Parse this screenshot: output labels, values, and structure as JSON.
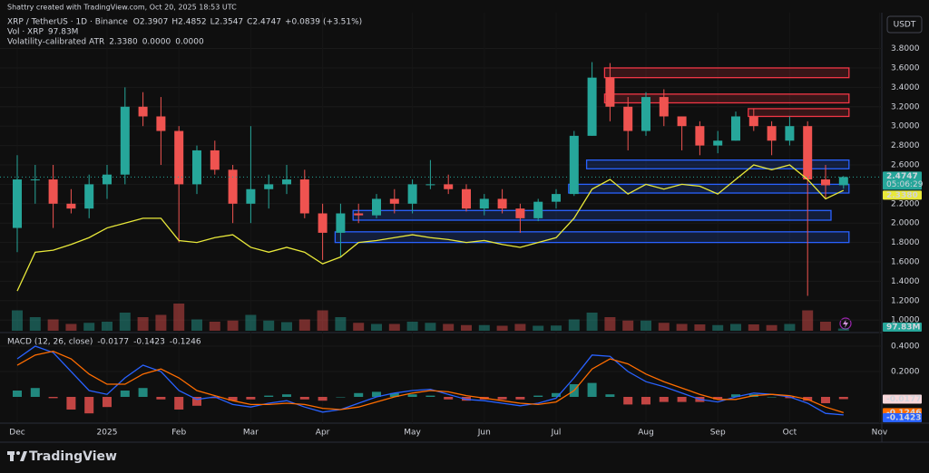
{
  "header": {
    "attribution": "Shattry created with TradingView.com, Oct 20, 2025 18:53 UTC",
    "currency": "USDT",
    "brand": "TradingView"
  },
  "chart_data": [
    {
      "type": "candlestick",
      "title": "XRP / TetherUS · 1D · Binance",
      "legend_values": [
        {
          "key": "O",
          "value": 2.3907
        },
        {
          "key": "H",
          "value": 2.4852
        },
        {
          "key": "L",
          "value": 2.3547
        },
        {
          "key": "C",
          "value": 2.4747
        }
      ],
      "change": {
        "value": 0.0839,
        "label": "+0.0839"
      },
      "change_pct": {
        "value": 3.51,
        "label": "(+3.51%)"
      },
      "countdown": "05:06:29",
      "categories": [
        "Dec",
        null,
        null,
        null,
        null,
        "2025",
        null,
        null,
        null,
        "Feb",
        null,
        null,
        null,
        "Mar",
        null,
        null,
        null,
        "Apr",
        null,
        null,
        null,
        null,
        "May",
        null,
        null,
        null,
        "Jun",
        null,
        null,
        null,
        "Jul",
        null,
        null,
        null,
        null,
        "Aug",
        null,
        null,
        null,
        "Sep",
        null,
        null,
        null,
        "Oct",
        null,
        null,
        null,
        null,
        "Nov"
      ],
      "open": [
        1.95,
        2.45,
        2.45,
        2.2,
        2.15,
        2.4,
        2.5,
        3.2,
        3.1,
        2.95,
        2.4,
        2.75,
        2.55,
        2.2,
        2.35,
        2.4,
        2.45,
        2.1,
        1.9,
        2.1,
        2.08,
        2.25,
        2.2,
        2.4,
        2.4,
        2.35,
        2.15,
        2.25,
        2.15,
        2.05,
        2.22,
        2.3,
        2.9,
        3.5,
        3.2,
        2.95,
        3.3,
        3.1,
        3.0,
        2.8,
        2.85,
        3.1,
        3.0,
        2.85,
        3.0,
        2.45,
        2.3907,
        null,
        null
      ],
      "high": [
        2.7,
        2.6,
        2.6,
        2.35,
        2.5,
        2.6,
        3.4,
        3.35,
        3.3,
        3.0,
        2.8,
        2.85,
        2.6,
        3.0,
        2.5,
        2.6,
        2.55,
        2.2,
        2.2,
        2.2,
        2.3,
        2.35,
        2.45,
        2.65,
        2.5,
        2.4,
        2.3,
        2.35,
        2.2,
        2.25,
        2.35,
        2.95,
        3.66,
        3.65,
        3.3,
        3.35,
        3.38,
        3.1,
        3.05,
        2.95,
        3.15,
        3.18,
        3.05,
        3.1,
        3.05,
        2.6,
        2.4852,
        null,
        null
      ],
      "low": [
        1.7,
        2.2,
        1.95,
        2.1,
        2.05,
        2.25,
        2.4,
        3.0,
        2.6,
        1.8,
        2.3,
        2.5,
        2.0,
        2.0,
        2.15,
        2.3,
        2.05,
        1.62,
        1.65,
        2.0,
        2.05,
        2.1,
        2.1,
        2.35,
        2.3,
        2.12,
        2.08,
        2.1,
        1.9,
        2.02,
        2.15,
        2.28,
        2.9,
        3.05,
        2.75,
        2.9,
        3.0,
        2.75,
        2.7,
        2.72,
        2.85,
        2.95,
        2.7,
        2.8,
        1.25,
        2.25,
        2.3547,
        null,
        null
      ],
      "close": [
        2.45,
        2.45,
        2.2,
        2.15,
        2.4,
        2.5,
        3.2,
        3.1,
        2.95,
        2.4,
        2.75,
        2.55,
        2.2,
        2.35,
        2.4,
        2.45,
        2.1,
        1.9,
        2.1,
        2.08,
        2.25,
        2.2,
        2.4,
        2.4,
        2.35,
        2.15,
        2.25,
        2.15,
        2.05,
        2.22,
        2.3,
        2.9,
        3.5,
        3.2,
        2.95,
        3.3,
        3.1,
        3.0,
        2.8,
        2.85,
        3.1,
        3.0,
        2.85,
        3.0,
        2.45,
        2.39,
        2.4747,
        null,
        null
      ],
      "up_color": "#26a69a",
      "down_color": "#ef5350",
      "ylim": [
        0.89,
        3.88
      ],
      "yticks": [
        {
          "value": 3.8,
          "label": "3.8000"
        },
        {
          "value": 3.6,
          "label": "3.6000"
        },
        {
          "value": 3.4,
          "label": "3.4000"
        },
        {
          "value": 3.2,
          "label": "3.2000"
        },
        {
          "value": 3.0,
          "label": "3.0000"
        },
        {
          "value": 2.8,
          "label": "2.8000"
        },
        {
          "value": 2.6,
          "label": "2.6000"
        },
        {
          "value": 2.4,
          "label": "2.4000"
        },
        {
          "value": 2.2,
          "label": "2.2000"
        },
        {
          "value": 2.0,
          "label": "2.0000"
        },
        {
          "value": 1.8,
          "label": "1.8000"
        },
        {
          "value": 1.6,
          "label": "1.6000"
        },
        {
          "value": 1.4,
          "label": "1.4000"
        },
        {
          "value": 1.2,
          "label": "1.2000"
        },
        {
          "value": 1.0,
          "label": "1.0000"
        }
      ],
      "grid": true,
      "volume": {
        "name": "Vol · XRP",
        "lim": [
          0,
          1600
        ],
        "last_label": {
          "value": 97.83,
          "label": "97.83M"
        },
        "values": [
          900,
          600,
          500,
          300,
          350,
          400,
          800,
          600,
          700,
          1200,
          500,
          400,
          450,
          700,
          450,
          380,
          500,
          900,
          600,
          350,
          300,
          300,
          400,
          350,
          300,
          250,
          250,
          220,
          300,
          220,
          230,
          500,
          800,
          600,
          450,
          450,
          350,
          300,
          280,
          250,
          300,
          280,
          250,
          300,
          900,
          400,
          97.83,
          null,
          null
        ]
      },
      "atr": {
        "name": "Volatility-calibrated ATR",
        "color": "#e8e83a",
        "legend_values": [
          {
            "value": 2.338,
            "label": "2.3380"
          },
          {
            "value": 0,
            "label": "0.0000"
          },
          {
            "value": 0,
            "label": "0.0000"
          }
        ],
        "values": [
          1.3,
          1.7,
          1.72,
          1.78,
          1.85,
          1.95,
          2.0,
          2.05,
          2.05,
          1.82,
          1.8,
          1.85,
          1.88,
          1.75,
          1.7,
          1.75,
          1.7,
          1.58,
          1.65,
          1.8,
          1.82,
          1.85,
          1.88,
          1.85,
          1.83,
          1.8,
          1.82,
          1.78,
          1.75,
          1.8,
          1.85,
          2.05,
          2.35,
          2.45,
          2.3,
          2.4,
          2.35,
          2.4,
          2.38,
          2.3,
          2.45,
          2.6,
          2.55,
          2.6,
          2.45,
          2.25,
          2.338,
          null,
          null
        ]
      },
      "zones": [
        {
          "price": [
            3.5,
            3.6
          ],
          "start": 33,
          "end": 46,
          "color": "#f23645"
        },
        {
          "price": [
            3.24,
            3.33
          ],
          "start": 33,
          "end": 46,
          "color": "#f23645"
        },
        {
          "price": [
            3.1,
            3.18
          ],
          "start": 41,
          "end": 46,
          "color": "#f23645"
        },
        {
          "price": [
            2.56,
            2.65
          ],
          "start": 32,
          "end": 46,
          "color": "#2962ff"
        },
        {
          "price": [
            2.31,
            2.4
          ],
          "start": 31,
          "end": 46,
          "color": "#2962ff"
        },
        {
          "price": [
            2.03,
            2.13
          ],
          "start": 19,
          "end": 45,
          "color": "#2962ff"
        },
        {
          "price": [
            1.8,
            1.91
          ],
          "start": 18,
          "end": 46,
          "color": "#2962ff"
        }
      ]
    },
    {
      "type": "macd",
      "title": "MACD (12, 26, close)",
      "ylim": [
        -0.193,
        0.486
      ],
      "yticks": [
        {
          "value": 0.4,
          "label": "0.4000"
        },
        {
          "value": 0.2,
          "label": "0.2000"
        }
      ],
      "histogram": {
        "up_color": "#26a69a",
        "down_color": "#ef5350",
        "values": [
          0.05,
          0.07,
          -0.01,
          -0.1,
          -0.13,
          -0.08,
          0.05,
          0.07,
          -0.02,
          -0.1,
          -0.07,
          -0.01,
          -0.03,
          -0.02,
          0.01,
          0.02,
          -0.02,
          -0.03,
          0.0,
          0.03,
          0.04,
          0.03,
          0.02,
          0.01,
          -0.02,
          -0.03,
          -0.02,
          -0.02,
          -0.02,
          0.01,
          0.03,
          0.1,
          0.11,
          0.02,
          -0.06,
          -0.06,
          -0.04,
          -0.04,
          -0.04,
          -0.02,
          0.02,
          0.02,
          0.0,
          -0.01,
          -0.03,
          -0.05,
          -0.0177,
          null,
          null
        ]
      },
      "series": [
        {
          "color": "#2962ff",
          "values": [
            0.3,
            0.4,
            0.35,
            0.2,
            0.05,
            0.02,
            0.15,
            0.25,
            0.2,
            0.05,
            -0.02,
            0.0,
            -0.06,
            -0.08,
            -0.05,
            -0.03,
            -0.08,
            -0.12,
            -0.1,
            -0.05,
            0.0,
            0.03,
            0.05,
            0.06,
            0.02,
            -0.02,
            -0.03,
            -0.05,
            -0.07,
            -0.05,
            -0.01,
            0.15,
            0.33,
            0.32,
            0.2,
            0.12,
            0.08,
            0.03,
            -0.02,
            -0.04,
            0.0,
            0.03,
            0.02,
            0.0,
            -0.05,
            -0.13,
            -0.1423,
            null,
            null
          ]
        },
        {
          "color": "#ff6d00",
          "values": [
            0.25,
            0.33,
            0.36,
            0.3,
            0.18,
            0.1,
            0.1,
            0.18,
            0.22,
            0.15,
            0.05,
            0.01,
            -0.03,
            -0.06,
            -0.06,
            -0.05,
            -0.06,
            -0.09,
            -0.1,
            -0.08,
            -0.04,
            0.0,
            0.03,
            0.05,
            0.04,
            0.01,
            -0.01,
            -0.03,
            -0.05,
            -0.06,
            -0.04,
            0.05,
            0.22,
            0.3,
            0.26,
            0.18,
            0.12,
            0.07,
            0.02,
            -0.02,
            -0.02,
            0.01,
            0.02,
            0.01,
            -0.02,
            -0.08,
            -0.1246,
            null,
            null
          ]
        }
      ]
    }
  ]
}
